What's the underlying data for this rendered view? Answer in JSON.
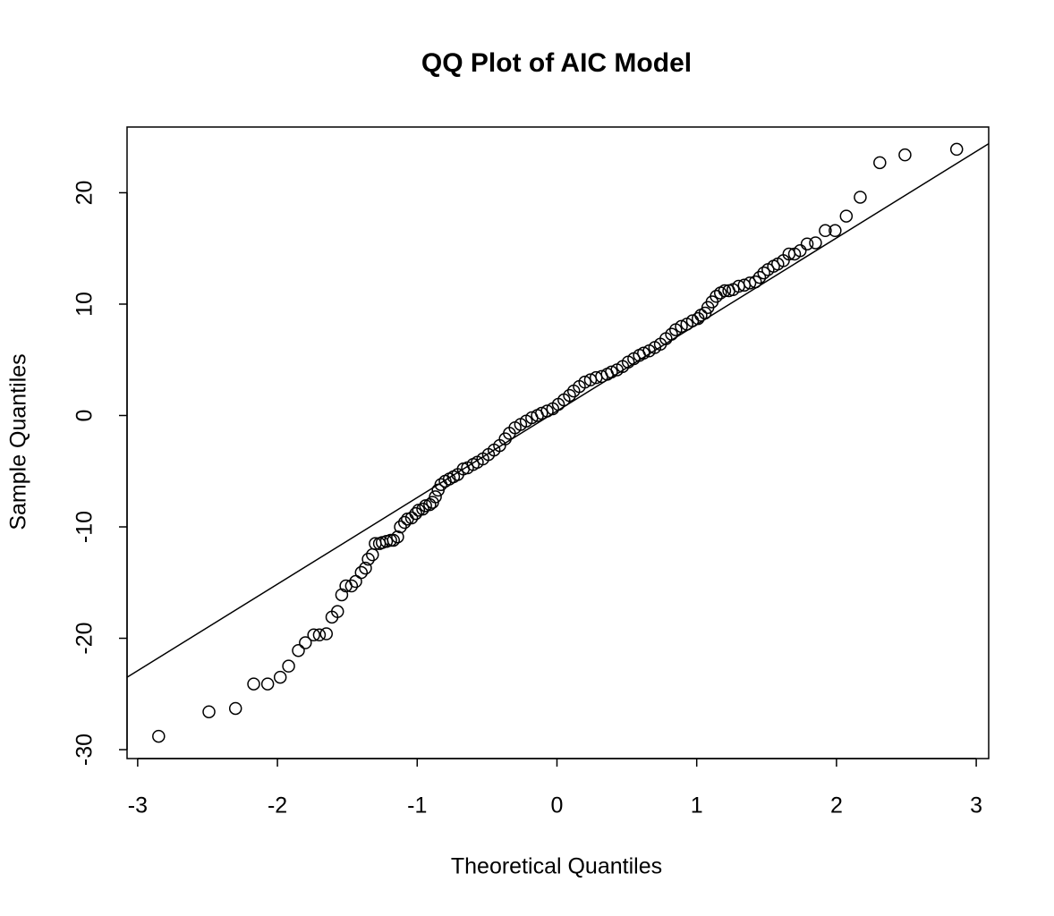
{
  "chart_data": {
    "type": "scatter",
    "title": "QQ Plot of AIC Model",
    "x_label": "Theoretical Quantiles",
    "y_label": "Sample Quantiles",
    "xlim": [
      -3.076,
      3.089
    ],
    "ylim": [
      -30.8,
      25.9
    ],
    "xticks": [
      -3,
      -2,
      -1,
      0,
      1,
      2,
      3
    ],
    "yticks": [
      -30,
      -20,
      -10,
      0,
      10,
      20
    ],
    "grid": false,
    "color": "#000000",
    "qq_line": {
      "intercept": 0.4,
      "slope": 7.77
    },
    "x": [
      -2.85,
      -2.49,
      -2.3,
      -2.17,
      -2.07,
      -1.98,
      -1.92,
      -1.85,
      -1.8,
      -1.74,
      -1.7,
      -1.65,
      -1.61,
      -1.57,
      -1.54,
      -1.51,
      -1.47,
      -1.44,
      -1.4,
      -1.37,
      -1.35,
      -1.32,
      -1.3,
      -1.27,
      -1.25,
      -1.22,
      -1.19,
      -1.17,
      -1.14,
      -1.12,
      -1.09,
      -1.07,
      -1.04,
      -1.01,
      -0.99,
      -0.96,
      -0.94,
      -0.91,
      -0.89,
      -0.87,
      -0.85,
      -0.83,
      -0.8,
      -0.77,
      -0.74,
      -0.71,
      -0.67,
      -0.64,
      -0.6,
      -0.57,
      -0.53,
      -0.49,
      -0.45,
      -0.41,
      -0.37,
      -0.34,
      -0.3,
      -0.26,
      -0.22,
      -0.18,
      -0.14,
      -0.11,
      -0.07,
      -0.03,
      0.01,
      0.05,
      0.09,
      0.12,
      0.16,
      0.2,
      0.24,
      0.28,
      0.32,
      0.36,
      0.39,
      0.43,
      0.47,
      0.51,
      0.55,
      0.59,
      0.62,
      0.66,
      0.7,
      0.74,
      0.78,
      0.82,
      0.85,
      0.89,
      0.93,
      0.97,
      1.01,
      1.03,
      1.06,
      1.08,
      1.11,
      1.14,
      1.17,
      1.2,
      1.23,
      1.26,
      1.3,
      1.34,
      1.38,
      1.42,
      1.45,
      1.48,
      1.51,
      1.55,
      1.58,
      1.62,
      1.66,
      1.7,
      1.74,
      1.79,
      1.85,
      1.92,
      1.99,
      2.07,
      2.17,
      2.31,
      2.49,
      2.86
    ],
    "y": [
      -28.8,
      -26.6,
      -26.3,
      -24.1,
      -24.1,
      -23.5,
      -22.5,
      -21.1,
      -20.4,
      -19.7,
      -19.7,
      -19.6,
      -18.1,
      -17.6,
      -16.1,
      -15.3,
      -15.3,
      -14.9,
      -14.1,
      -13.7,
      -12.9,
      -12.5,
      -11.5,
      -11.5,
      -11.4,
      -11.3,
      -11.2,
      -11.2,
      -10.9,
      -10.0,
      -9.6,
      -9.3,
      -9.2,
      -8.8,
      -8.5,
      -8.4,
      -8.1,
      -8.0,
      -7.8,
      -7.3,
      -6.7,
      -6.2,
      -5.9,
      -5.7,
      -5.5,
      -5.3,
      -4.8,
      -4.7,
      -4.4,
      -4.2,
      -3.9,
      -3.5,
      -3.1,
      -2.7,
      -2.1,
      -1.6,
      -1.1,
      -0.8,
      -0.5,
      -0.2,
      0.0,
      0.2,
      0.4,
      0.6,
      1.0,
      1.4,
      1.8,
      2.2,
      2.6,
      3.0,
      3.2,
      3.4,
      3.5,
      3.7,
      3.9,
      4.1,
      4.4,
      4.8,
      5.1,
      5.4,
      5.6,
      5.8,
      6.1,
      6.4,
      6.9,
      7.3,
      7.7,
      8.0,
      8.2,
      8.5,
      8.7,
      9.0,
      9.2,
      9.7,
      10.2,
      10.7,
      11.0,
      11.2,
      11.2,
      11.3,
      11.6,
      11.7,
      11.9,
      12.0,
      12.4,
      12.8,
      13.1,
      13.4,
      13.6,
      13.9,
      14.5,
      14.5,
      14.8,
      15.4,
      15.5,
      16.6,
      16.6,
      17.9,
      19.6,
      22.7,
      23.4,
      23.9
    ]
  }
}
